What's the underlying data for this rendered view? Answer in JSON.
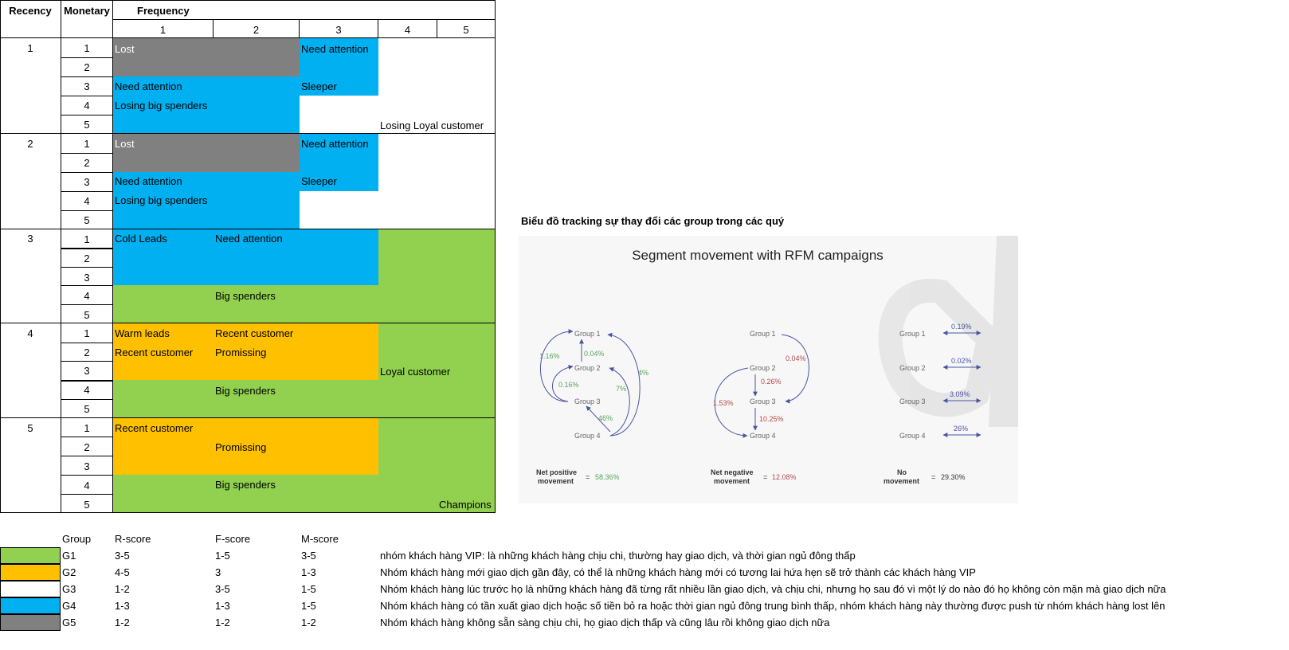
{
  "colors": {
    "green": "#92d050",
    "orange": "#ffc000",
    "blue": "#00b0f0",
    "gray": "#808080",
    "white": "#ffffff",
    "chart_green": "#5aa35f",
    "chart_red": "#b24b4b",
    "chart_arrow": "#4a55a2"
  },
  "table": {
    "header": {
      "recency": "Recency",
      "monetary": "Monetary",
      "frequency": "Frequency",
      "freq_cols": [
        "1",
        "2",
        "3",
        "4",
        "5"
      ]
    },
    "recency_values": [
      "1",
      "2",
      "3",
      "4",
      "5"
    ],
    "monetary_values": [
      "1",
      "2",
      "3",
      "4",
      "5"
    ],
    "labels": {
      "r1_lost": "Lost",
      "r1_need_attention_f3": "Need attention",
      "r1_need_attention_m3": "Need attention",
      "r1_sleeper": "Sleeper",
      "r1_losing_big": "Losing big spenders",
      "r1_losing_loyal": "Losing Loyal customer",
      "r2_lost": "Lost",
      "r2_need_attention_f3": "Need attention",
      "r2_need_attention_m3": "Need attention",
      "r2_sleeper": "Sleeper",
      "r2_losing_big": "Losing big spenders",
      "r3_cold": "Cold Leads",
      "r3_need_attention": "Need attention",
      "r3_big": "Big spenders",
      "r4_warm": "Warm leads",
      "r4_recent_f2": "Recent customer",
      "r4_recent_m2": "Recent customer",
      "r4_promissing": "Promissing",
      "r4_loyal": "Loyal customer",
      "r4_big": "Big spenders",
      "r5_recent": "Recent customer",
      "r5_promissing": "Promissing",
      "r5_big": "Big spenders",
      "r5_champions": "Champions"
    }
  },
  "chart_section": {
    "caption": "Biểu đồ tracking sự thay đổi các group trong các quý",
    "image_title": "Segment movement with RFM campaigns",
    "groups": [
      "Group 1",
      "Group 2",
      "Group 3",
      "Group 4"
    ],
    "positive": {
      "labels": [
        "1.16%",
        "0.04%",
        "0.16%",
        "4%",
        "7%",
        "46%"
      ],
      "summary_label_1": "Net positive",
      "summary_label_2": "movement",
      "summary_eq": "=",
      "summary_value": "58.36%"
    },
    "negative": {
      "labels": [
        "0.04%",
        "0.26%",
        "1.53%",
        "10.25%"
      ],
      "summary_label_1": "Net negative",
      "summary_label_2": "movement",
      "summary_eq": "=",
      "summary_value": "12.08%"
    },
    "none": {
      "labels": [
        "0.19%",
        "0.02%",
        "3.09%",
        "26%"
      ],
      "summary_label_1": "No",
      "summary_label_2": "movement",
      "summary_eq": "=",
      "summary_value": "29.30%"
    }
  },
  "legend": {
    "headers": {
      "group": "Group",
      "r": "R-score",
      "f": "F-score",
      "m": "M-score"
    },
    "rows": [
      {
        "group": "G1",
        "r": "3-5",
        "f": "1-5",
        "m": "3-5",
        "desc": "nhóm khách hàng VIP: là những khách hàng chịu chi, thường hay giao dịch, và thời gian ngủ đông thấp"
      },
      {
        "group": "G2",
        "r": "4-5",
        "f": "3",
        "m": "1-3",
        "desc": "Nhóm khách hàng mới giao dịch gần đây, có thể là những khách hàng mới có tương lai hứa hẹn sẽ trở thành các khách hàng VIP"
      },
      {
        "group": "G3",
        "r": "1-2",
        "f": "3-5",
        "m": "1-5",
        "desc": "Nhóm khách hàng lúc trước họ là những khách hàng đã từng rất nhiều lần giao dịch, và chịu chi, nhưng họ sau đó vì một lý do nào đó họ không còn mặn mà giao dịch nữa"
      },
      {
        "group": "G4",
        "r": "1-3",
        "f": "1-3",
        "m": "1-5",
        "desc": "Nhóm khách hàng có tần xuất giao dịch hoặc số tiền bỏ ra hoặc thời gian ngủ đông trung bình thấp, nhóm khách hàng này thường được push từ nhóm khách hàng lost lên"
      },
      {
        "group": "G5",
        "r": "1-2",
        "f": "1-2",
        "m": "1-2",
        "desc": "Nhóm khách hàng không sẵn sàng chịu chi, họ giao dịch thấp và cũng lâu rồi không giao dịch nữa"
      }
    ]
  }
}
